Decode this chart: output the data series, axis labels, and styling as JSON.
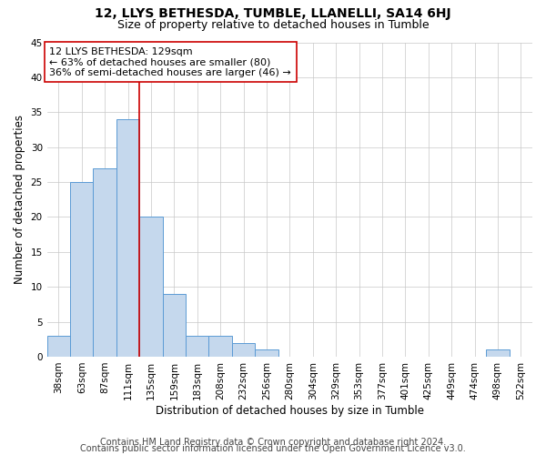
{
  "title": "12, LLYS BETHESDA, TUMBLE, LLANELLI, SA14 6HJ",
  "subtitle": "Size of property relative to detached houses in Tumble",
  "xlabel": "Distribution of detached houses by size in Tumble",
  "ylabel": "Number of detached properties",
  "categories": [
    "38sqm",
    "63sqm",
    "87sqm",
    "111sqm",
    "135sqm",
    "159sqm",
    "183sqm",
    "208sqm",
    "232sqm",
    "256sqm",
    "280sqm",
    "304sqm",
    "329sqm",
    "353sqm",
    "377sqm",
    "401sqm",
    "425sqm",
    "449sqm",
    "474sqm",
    "498sqm",
    "522sqm"
  ],
  "values": [
    3,
    25,
    27,
    34,
    20,
    9,
    3,
    3,
    2,
    1,
    0,
    0,
    0,
    0,
    0,
    0,
    0,
    0,
    0,
    1,
    0
  ],
  "bar_color": "#c5d8ed",
  "bar_edge_color": "#5b9bd5",
  "grid_color": "#c8c8c8",
  "background_color": "#ffffff",
  "annotation_line1": "12 LLYS BETHESDA: 129sqm",
  "annotation_line2": "← 63% of detached houses are smaller (80)",
  "annotation_line3": "36% of semi-detached houses are larger (46) →",
  "vline_color": "#cc0000",
  "annotation_box_edge_color": "#cc0000",
  "ylim": [
    0,
    45
  ],
  "yticks": [
    0,
    5,
    10,
    15,
    20,
    25,
    30,
    35,
    40,
    45
  ],
  "footnote1": "Contains HM Land Registry data © Crown copyright and database right 2024.",
  "footnote2": "Contains public sector information licensed under the Open Government Licence v3.0.",
  "title_fontsize": 10,
  "subtitle_fontsize": 9,
  "axis_label_fontsize": 8.5,
  "tick_fontsize": 7.5,
  "annotation_fontsize": 8,
  "footnote_fontsize": 7
}
